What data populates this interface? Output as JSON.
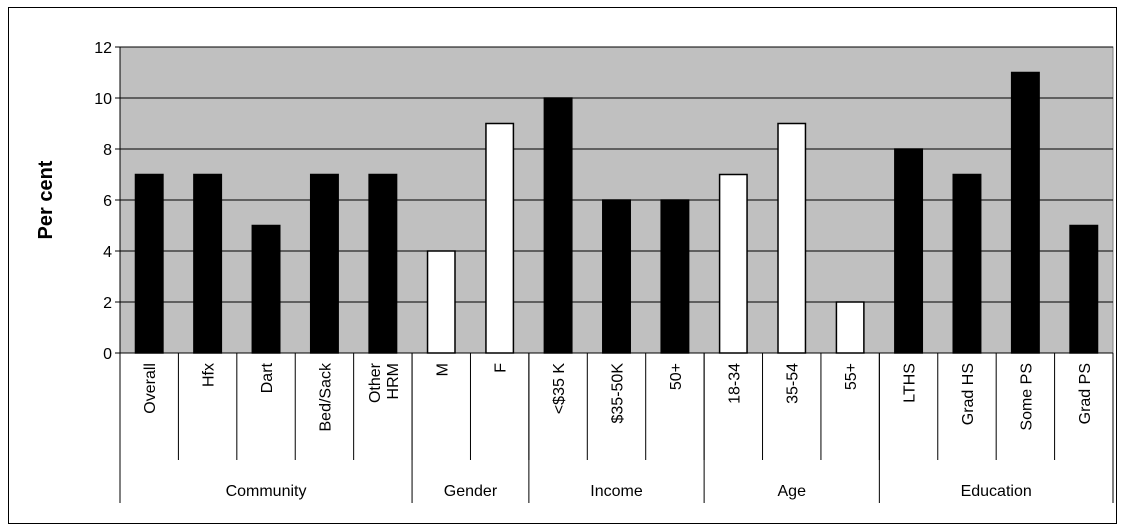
{
  "chart_data": {
    "type": "bar",
    "title": "",
    "xlabel": "",
    "ylabel": "Per cent",
    "ylim": [
      0,
      12
    ],
    "yticks": [
      0,
      2,
      4,
      6,
      8,
      10,
      12
    ],
    "grid": true,
    "legend": "none",
    "colors": {
      "plot_background": "#c0c0c0",
      "bar_black": "#000000",
      "bar_white": "#ffffff",
      "gridline": "#000000"
    },
    "bars": [
      {
        "label": "Overall",
        "value": 7,
        "fill": "black",
        "group": "Community"
      },
      {
        "label": "Hfx",
        "value": 7,
        "fill": "black",
        "group": "Community"
      },
      {
        "label": "Dart",
        "value": 5,
        "fill": "black",
        "group": "Community"
      },
      {
        "label": "Bed/Sack",
        "value": 7,
        "fill": "black",
        "group": "Community"
      },
      {
        "label": "Other HRM",
        "label_lines": [
          "Other",
          "HRM"
        ],
        "value": 7,
        "fill": "black",
        "group": "Community"
      },
      {
        "label": "M",
        "value": 4,
        "fill": "white",
        "group": "Gender"
      },
      {
        "label": "F",
        "value": 9,
        "fill": "white",
        "group": "Gender"
      },
      {
        "label": "<$35 K",
        "value": 10,
        "fill": "black",
        "group": "Income"
      },
      {
        "label": "$35-50K",
        "value": 6,
        "fill": "black",
        "group": "Income"
      },
      {
        "label": "50+",
        "value": 6,
        "fill": "black",
        "group": "Income"
      },
      {
        "label": "18-34",
        "value": 7,
        "fill": "white",
        "group": "Age"
      },
      {
        "label": "35-54",
        "value": 9,
        "fill": "white",
        "group": "Age"
      },
      {
        "label": "55+",
        "value": 2,
        "fill": "white",
        "group": "Age"
      },
      {
        "label": "LTHS",
        "value": 8,
        "fill": "black",
        "group": "Education"
      },
      {
        "label": "Grad HS",
        "value": 7,
        "fill": "black",
        "group": "Education"
      },
      {
        "label": "Some PS",
        "value": 11,
        "fill": "black",
        "group": "Education"
      },
      {
        "label": "Grad PS",
        "value": 5,
        "fill": "black",
        "group": "Education"
      }
    ],
    "groups": [
      {
        "name": "Community",
        "count": 5
      },
      {
        "name": "Gender",
        "count": 2
      },
      {
        "name": "Income",
        "count": 3
      },
      {
        "name": "Age",
        "count": 3
      },
      {
        "name": "Education",
        "count": 4
      }
    ]
  }
}
